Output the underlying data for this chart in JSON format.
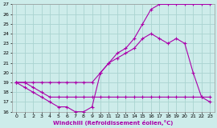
{
  "xlabel": "Windchill (Refroidissement éolien,°C)",
  "xlim": [
    -0.5,
    23.5
  ],
  "ylim": [
    16,
    27
  ],
  "yticks": [
    16,
    17,
    18,
    19,
    20,
    21,
    22,
    23,
    24,
    25,
    26,
    27
  ],
  "xticks": [
    0,
    1,
    2,
    3,
    4,
    5,
    6,
    7,
    8,
    9,
    10,
    11,
    12,
    13,
    14,
    15,
    16,
    17,
    18,
    19,
    20,
    21,
    22,
    23
  ],
  "bg_color": "#cdecea",
  "grid_color": "#aad4d0",
  "line_color": "#aa00aa",
  "series": [
    {
      "x": [
        0,
        1,
        2,
        3,
        4,
        5,
        6,
        7,
        8,
        9,
        10,
        11,
        12,
        13,
        14,
        15,
        16,
        17,
        18,
        19,
        20,
        21,
        22,
        23
      ],
      "y": [
        19,
        19,
        19,
        19,
        19,
        19,
        19,
        19,
        19,
        19,
        20,
        21,
        22,
        22.5,
        23.5,
        25,
        26.5,
        27,
        27,
        27,
        27,
        27,
        27,
        27
      ]
    },
    {
      "x": [
        0,
        1,
        2,
        3,
        4,
        5,
        6,
        7,
        8,
        9,
        10,
        11,
        12,
        13,
        14,
        15,
        16,
        17,
        18,
        19,
        20,
        21,
        22,
        23
      ],
      "y": [
        19,
        19,
        18.5,
        18,
        17.5,
        17.5,
        17.5,
        17.5,
        17.5,
        17.5,
        17.5,
        17.5,
        17.5,
        17.5,
        17.5,
        17.5,
        17.5,
        17.5,
        17.5,
        17.5,
        17.5,
        17.5,
        17.5,
        17.5
      ]
    },
    {
      "x": [
        0,
        1,
        2,
        3,
        4,
        5,
        6,
        7,
        8,
        9,
        10,
        11,
        12,
        13,
        14,
        15,
        16,
        17,
        18,
        19,
        20,
        21,
        22,
        23
      ],
      "y": [
        19,
        18.5,
        18,
        17.5,
        17,
        16.5,
        16.5,
        16,
        16,
        16.5,
        20,
        21,
        21.5,
        22,
        22.5,
        23.5,
        24,
        23.5,
        23,
        23.5,
        23,
        20,
        17.5,
        17
      ]
    }
  ]
}
